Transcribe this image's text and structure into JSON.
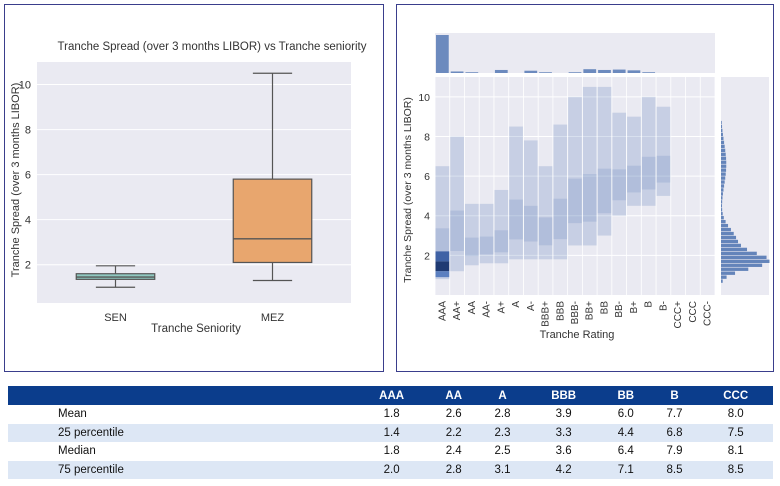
{
  "chart_data": [
    {
      "type": "box",
      "title": "Tranche Spread (over 3 months LIBOR) vs Tranche seniority",
      "xlabel": "Tranche Seniority",
      "ylabel": "Tranche Spread (over 3 months LIBOR)",
      "ylim": [
        0.3,
        11.0
      ],
      "yticks": [
        "2",
        "4",
        "6",
        "8",
        "10"
      ],
      "grid": true,
      "boxes": [
        {
          "label": "SEN",
          "min": 1.0,
          "q1": 1.35,
          "median": 1.45,
          "q3": 1.6,
          "max": 1.95,
          "color": "#8fc8c0"
        },
        {
          "label": "MEZ",
          "min": 1.3,
          "q1": 2.1,
          "median": 3.15,
          "q3": 5.8,
          "max": 10.5,
          "color": "#e8a66e"
        }
      ]
    },
    {
      "type": "heatmap",
      "xlabel": "Tranche Rating",
      "ylabel": "Tranche Spread (over 3 months LIBOR)",
      "categories": [
        "AAA",
        "AA+",
        "AA",
        "AA-",
        "A+",
        "A",
        "A-",
        "BBB+",
        "BBB",
        "BBB-",
        "BB+",
        "BB",
        "BB-",
        "B+",
        "B",
        "B-",
        "CCC+",
        "CCC",
        "CCC-"
      ],
      "ylim": [
        0,
        11
      ],
      "yticks": [
        "2",
        "4",
        "6",
        "8",
        "10"
      ],
      "column_ranges": [
        [
          0.8,
          6.5
        ],
        [
          1.2,
          8.0
        ],
        [
          1.5,
          4.6
        ],
        [
          1.6,
          4.6
        ],
        [
          1.6,
          5.3
        ],
        [
          1.8,
          8.5
        ],
        [
          1.8,
          7.8
        ],
        [
          1.8,
          6.5
        ],
        [
          1.8,
          8.6
        ],
        [
          2.5,
          10.0
        ],
        [
          2.5,
          10.5
        ],
        [
          3.0,
          10.5
        ],
        [
          4.0,
          9.2
        ],
        [
          4.5,
          9.0
        ],
        [
          4.5,
          10.0
        ],
        [
          5.0,
          9.5
        ],
        [
          null,
          null
        ],
        [
          null,
          null
        ],
        [
          null,
          null
        ]
      ],
      "marginal_x_counts": [
        100,
        4,
        2,
        0,
        8,
        0,
        6,
        2,
        0,
        2,
        10,
        8,
        9,
        7,
        2,
        0,
        0,
        0,
        0
      ],
      "marginal_y": "density concentrated near 1.5–2.5, tail to 10",
      "color": "#4c72b0"
    }
  ],
  "table": {
    "columns": [
      "",
      "AAA",
      "AA",
      "A",
      "BBB",
      "BB",
      "B",
      "CCC"
    ],
    "rows": [
      {
        "label": "Mean",
        "values": [
          "1.8",
          "2.6",
          "2.8",
          "3.9",
          "6.0",
          "7.7",
          "8.0"
        ]
      },
      {
        "label": "25 percentile",
        "values": [
          "1.4",
          "2.2",
          "2.3",
          "3.3",
          "4.4",
          "6.8",
          "7.5"
        ]
      },
      {
        "label": "Median",
        "values": [
          "1.8",
          "2.4",
          "2.5",
          "3.6",
          "6.4",
          "7.9",
          "8.1"
        ]
      },
      {
        "label": "75 percentile",
        "values": [
          "2.0",
          "2.8",
          "3.1",
          "4.2",
          "7.1",
          "8.5",
          "8.5"
        ]
      }
    ]
  }
}
